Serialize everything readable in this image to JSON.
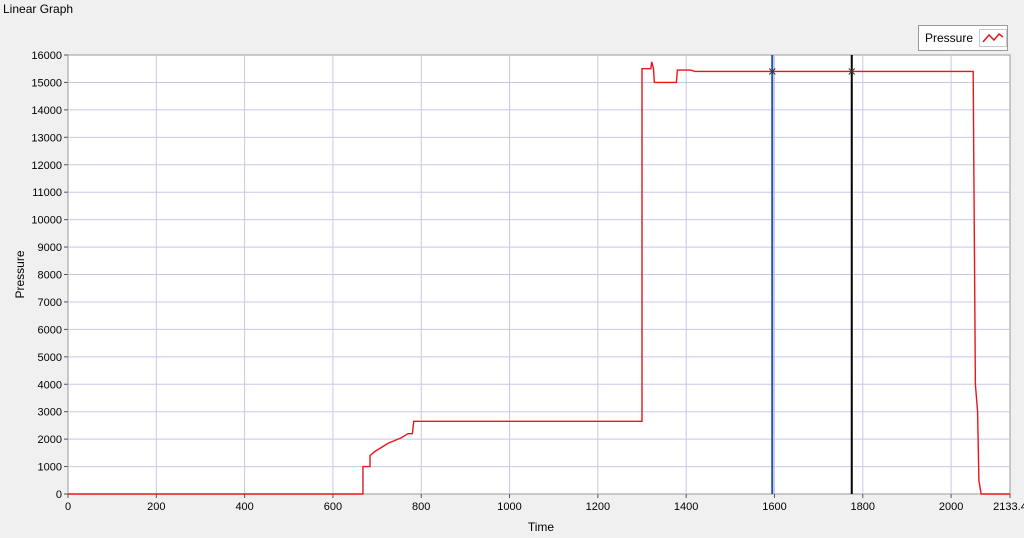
{
  "window": {
    "title": "Linear Graph"
  },
  "legend": {
    "label": "Pressure"
  },
  "colors": {
    "series": "#e8151b",
    "cursor1": "#1f4fb4",
    "cursor2": "#000000",
    "grid": "#c8c8e6",
    "plot_bg": "#ffffff",
    "frame_bg": "#f0f0f0"
  },
  "chart_data": {
    "type": "line",
    "title": "",
    "xlabel": "Time",
    "ylabel": "Pressure",
    "xlim": [
      0,
      2133.4
    ],
    "ylim": [
      0,
      16000
    ],
    "grid": true,
    "legend_position": "top-right",
    "x_ticks": [
      "0",
      "200",
      "400",
      "600",
      "800",
      "1000",
      "1200",
      "1400",
      "1600",
      "1800",
      "2000",
      "2133.4"
    ],
    "y_ticks": [
      "0",
      "1000",
      "2000",
      "3000",
      "4000",
      "5000",
      "6000",
      "7000",
      "8000",
      "9000",
      "10000",
      "11000",
      "12000",
      "13000",
      "14000",
      "15000",
      "16000"
    ],
    "series": [
      {
        "name": "Pressure",
        "points": [
          [
            0,
            0
          ],
          [
            668,
            0
          ],
          [
            668,
            1000
          ],
          [
            684,
            1000
          ],
          [
            684,
            1400
          ],
          [
            695,
            1550
          ],
          [
            710,
            1700
          ],
          [
            725,
            1850
          ],
          [
            740,
            1950
          ],
          [
            755,
            2050
          ],
          [
            770,
            2200
          ],
          [
            780,
            2200
          ],
          [
            783,
            2650
          ],
          [
            1300,
            2650
          ],
          [
            1300,
            15500
          ],
          [
            1320,
            15500
          ],
          [
            1322,
            15750
          ],
          [
            1326,
            15500
          ],
          [
            1328,
            15000
          ],
          [
            1378,
            15000
          ],
          [
            1380,
            15450
          ],
          [
            1410,
            15450
          ],
          [
            1420,
            15400
          ],
          [
            2050,
            15400
          ],
          [
            2055,
            4000
          ],
          [
            2060,
            3000
          ],
          [
            2063,
            500
          ],
          [
            2068,
            0
          ],
          [
            2133.4,
            0
          ]
        ]
      }
    ],
    "cursors": [
      {
        "x": 1595,
        "y": 15400
      },
      {
        "x": 1775,
        "y": 15400
      }
    ]
  }
}
